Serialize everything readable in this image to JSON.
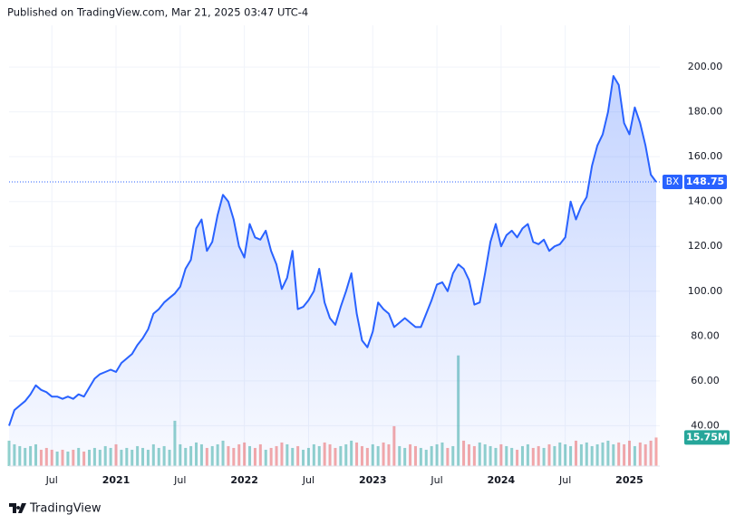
{
  "header": "Published on TradingView.com, Mar 21, 2025 03:47 UTC-4",
  "footer": "TradingView",
  "chart_data": {
    "type": "area",
    "symbol": "BX",
    "last_value": 148.75,
    "volume_badge": "15.75M",
    "xlim": [
      0,
      121
    ],
    "xticks": [
      {
        "value": 8,
        "label": "Jul"
      },
      {
        "value": 20,
        "label": "2021"
      },
      {
        "value": 32,
        "label": "Jul"
      },
      {
        "value": 44,
        "label": "2022"
      },
      {
        "value": 56,
        "label": "Jul"
      },
      {
        "value": 68,
        "label": "2023"
      },
      {
        "value": 80,
        "label": "Jul"
      },
      {
        "value": 92,
        "label": "2024"
      },
      {
        "value": 104,
        "label": "Jul"
      },
      {
        "value": 116,
        "label": "2025"
      }
    ],
    "ylim": [
      22,
      218.6
    ],
    "yticks": [
      {
        "value": 40,
        "label": "40.00"
      },
      {
        "value": 60,
        "label": "60.00"
      },
      {
        "value": 80,
        "label": "80.00"
      },
      {
        "value": 100,
        "label": "100.00"
      },
      {
        "value": 120,
        "label": "120.00"
      },
      {
        "value": 140,
        "label": "140.00"
      },
      {
        "value": 160,
        "label": "160.00"
      },
      {
        "value": 180,
        "label": "180.00"
      },
      {
        "value": 200,
        "label": "200.00"
      }
    ],
    "y2lim": [
      0,
      243
    ],
    "grid": true,
    "series": [
      {
        "name": "BX",
        "color": "#2962ff",
        "values": [
          40,
          47,
          49,
          51,
          54,
          58,
          56,
          55,
          53,
          53,
          52,
          53,
          52,
          54,
          53,
          57,
          61,
          63,
          64,
          65,
          64,
          68,
          70,
          72,
          76,
          79,
          83,
          90,
          92,
          95,
          97,
          99,
          102,
          110,
          114,
          128,
          132,
          118,
          122,
          134,
          143,
          140,
          132,
          120,
          115,
          130,
          124,
          123,
          127,
          118,
          112,
          101,
          106,
          118,
          92,
          93,
          96,
          100,
          110,
          95,
          88,
          85,
          93,
          100,
          108,
          90,
          78,
          75,
          82,
          95,
          92,
          90,
          84,
          86,
          88,
          86,
          84,
          84,
          90,
          96,
          103,
          104,
          100,
          108,
          112,
          110,
          105,
          94,
          95,
          108,
          122,
          130,
          120,
          125,
          127,
          124,
          128,
          130,
          122,
          121,
          123,
          118,
          120,
          121,
          124,
          140,
          132,
          138,
          142,
          156,
          165,
          170,
          180,
          196,
          192,
          175,
          170,
          182,
          175,
          165,
          152,
          148.75
        ]
      },
      {
        "name": "Volume",
        "axis": "y2",
        "values": [
          14,
          12,
          11,
          10,
          11,
          12,
          9,
          10,
          9,
          8,
          9,
          8,
          9,
          10,
          8,
          9,
          10,
          9,
          11,
          10,
          12,
          9,
          10,
          9,
          11,
          10,
          9,
          12,
          10,
          11,
          9,
          25,
          12,
          10,
          11,
          13,
          12,
          10,
          11,
          12,
          14,
          11,
          10,
          12,
          13,
          11,
          10,
          12,
          9,
          10,
          11,
          13,
          12,
          10,
          11,
          9,
          10,
          12,
          11,
          13,
          12,
          10,
          11,
          12,
          14,
          13,
          11,
          10,
          12,
          11,
          13,
          12,
          22,
          11,
          10,
          12,
          11,
          10,
          9,
          11,
          12,
          13,
          10,
          11,
          61,
          14,
          12,
          11,
          13,
          12,
          11,
          10,
          12,
          11,
          10,
          9,
          11,
          12,
          10,
          11,
          10,
          12,
          11,
          13,
          12,
          11,
          14,
          12,
          13,
          11,
          12,
          13,
          14,
          12,
          13,
          12,
          14,
          11,
          13,
          12,
          14,
          15.75
        ]
      }
    ]
  }
}
